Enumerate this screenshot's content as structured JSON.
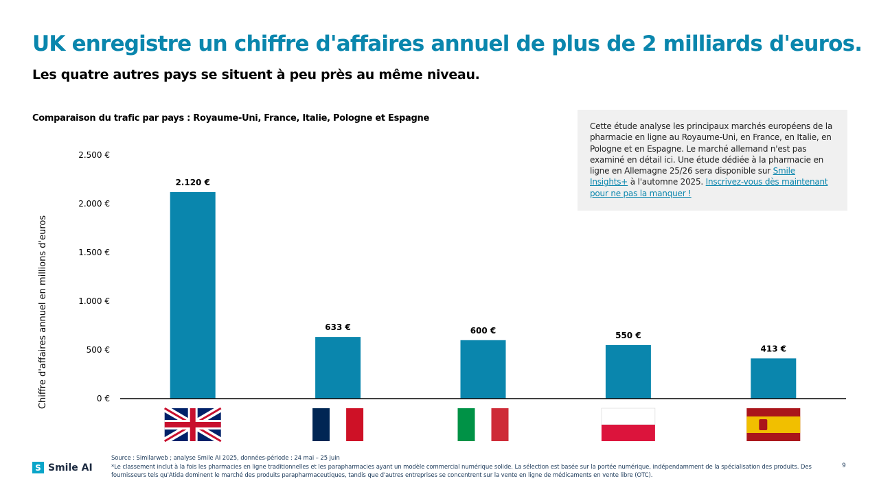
{
  "header": {
    "title": "UK enregistre un chiffre d'affaires annuel de plus de 2 milliards d'euros.",
    "subtitle": "Les quatre autres pays se situent à peu près au même niveau."
  },
  "info_box": {
    "text_before": "Cette étude analyse les principaux marchés européens de la pharmacie en ligne au Royaume-Uni, en France, en Italie, en Pologne et en Espagne. Le marché allemand n'est pas examiné en détail ici. Une étude dédiée à la pharmacie en ligne en Allemagne 25/26 sera disponible sur ",
    "link1": "Smile Insights+",
    "text_middle": " à l'automne 2025. ",
    "link2": "Inscrivez-vous dès maintenant pour ne pas la manquer !"
  },
  "chart_data": {
    "type": "bar",
    "title": "Comparaison du trafic par pays : Royaume-Uni, France, Italie, Pologne et Espagne",
    "ylabel": "Chiffre d'affaires annuel en millions d'euros",
    "categories": [
      "Royaume-Uni",
      "France",
      "Italie",
      "Pologne",
      "Espagne"
    ],
    "category_icons": [
      "uk-flag",
      "france-flag",
      "italy-flag",
      "poland-flag",
      "spain-flag"
    ],
    "values": [
      2120,
      633,
      600,
      550,
      413
    ],
    "data_labels": [
      "2.120 €",
      "633 €",
      "600 €",
      "550 €",
      "413 €"
    ],
    "ylim": [
      0,
      2500
    ],
    "yticks": [
      0,
      500,
      1000,
      1500,
      2000,
      2500
    ],
    "ytick_labels": [
      "0 €",
      "500 €",
      "1.000 €",
      "1.500 €",
      "2.000 €",
      "2.500 €"
    ],
    "bar_color": "#0a86ad",
    "grid": false
  },
  "footer": {
    "source": "Source : Similarweb ; analyse Smile AI 2025, données-période : 24 mai – 25 juin",
    "note": "*Le classement inclut à la fois les pharmacies en ligne traditionnelles et les parapharmacies ayant un modèle commercial numérique solide. La sélection est basée sur la portée numérique, indépendamment de la spécialisation des produits. Des fournisseurs tels qu'Atida dominent le marché des produits parapharmaceutiques, tandis que d'autres entreprises se concentrent sur la vente en ligne de médicaments en vente libre (OTC).",
    "logo": "Smile AI",
    "page": "9"
  },
  "colors": {
    "accent": "#0a86ad"
  }
}
